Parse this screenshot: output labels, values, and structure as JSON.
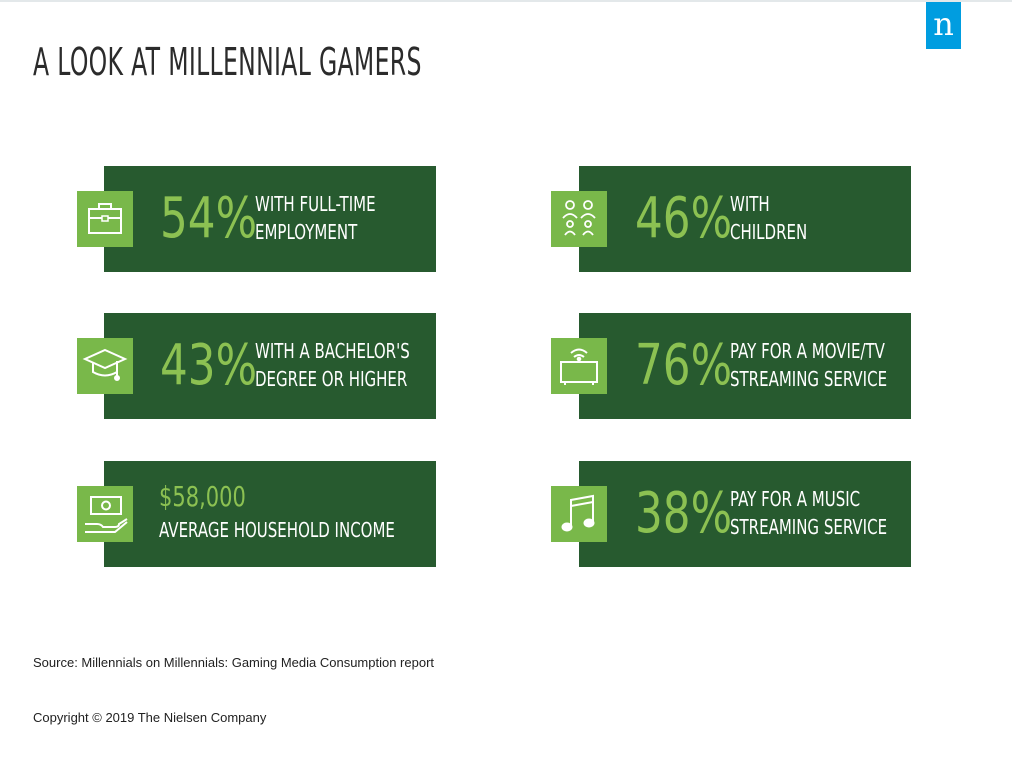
{
  "brand": {
    "logo_letter": "n"
  },
  "page_title": "A LOOK AT MILLENNIAL GAMERS",
  "stats": [
    {
      "icon": "briefcase-icon",
      "value": "54%",
      "line1": "WITH FULL-TIME",
      "line2": "EMPLOYMENT"
    },
    {
      "icon": "children-icon",
      "value": "46%",
      "line1": "WITH",
      "line2": "CHILDREN"
    },
    {
      "icon": "graduation-cap-icon",
      "value": "43%",
      "line1": "WITH A BACHELOR'S",
      "line2": "DEGREE OR HIGHER"
    },
    {
      "icon": "tv-streaming-icon",
      "value": "76%",
      "line1": "PAY FOR A MOVIE/TV",
      "line2": "STREAMING SERVICE"
    },
    {
      "icon": "money-hand-icon",
      "value": "$58,000",
      "line1": "AVERAGE HOUSEHOLD INCOME",
      "line2": ""
    },
    {
      "icon": "music-note-icon",
      "value": "38%",
      "line1": "PAY FOR A MUSIC",
      "line2": "STREAMING SERVICE"
    }
  ],
  "source_note": "Source: Millennials on Millennials: Gaming Media Consumption report",
  "copyright": "Copyright © 2019 The Nielsen Company",
  "colors": {
    "card_bg": "#275a2f",
    "icon_bg": "#79b84a",
    "stat_green": "#8cc152",
    "logo_blue": "#009de0"
  }
}
